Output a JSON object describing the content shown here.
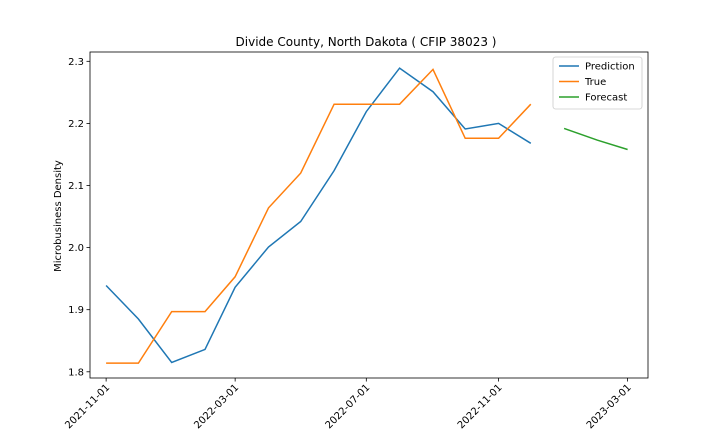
{
  "chart_data": {
    "type": "line",
    "title": "Divide County, North Dakota ( CFIP 38023 )",
    "xlabel": "",
    "ylabel": "Microbusiness Density",
    "ylim": [
      1.79,
      2.315
    ],
    "yticks": [
      1.8,
      1.9,
      2.0,
      2.1,
      2.2,
      2.3
    ],
    "ytick_labels": [
      "1.8",
      "1.9",
      "2.0",
      "2.1",
      "2.2",
      "2.3"
    ],
    "xlim": [
      "2021-10-17",
      "2023-03-20"
    ],
    "xticks": [
      "2021-11-01",
      "2022-03-01",
      "2022-07-01",
      "2022-11-01",
      "2023-03-01"
    ],
    "legend_position": "top-right",
    "grid": false,
    "series": [
      {
        "name": "Prediction",
        "color": "#1f77b4",
        "x": [
          "2021-11-01",
          "2021-12-01",
          "2022-01-01",
          "2022-02-01",
          "2022-03-01",
          "2022-04-01",
          "2022-05-01",
          "2022-06-01",
          "2022-07-01",
          "2022-08-01",
          "2022-09-01",
          "2022-10-01",
          "2022-11-01",
          "2022-12-01"
        ],
        "y": [
          1.939,
          1.885,
          1.815,
          1.836,
          1.936,
          2.001,
          2.042,
          2.124,
          2.219,
          2.289,
          2.251,
          2.191,
          2.2,
          2.168
        ]
      },
      {
        "name": "True",
        "color": "#ff7f0e",
        "x": [
          "2021-11-01",
          "2021-12-01",
          "2022-01-01",
          "2022-02-01",
          "2022-03-01",
          "2022-04-01",
          "2022-05-01",
          "2022-06-01",
          "2022-07-01",
          "2022-08-01",
          "2022-09-01",
          "2022-10-01",
          "2022-11-01",
          "2022-12-01"
        ],
        "y": [
          1.814,
          1.814,
          1.897,
          1.897,
          1.953,
          2.064,
          2.12,
          2.231,
          2.231,
          2.231,
          2.287,
          2.176,
          2.176,
          2.231
        ]
      },
      {
        "name": "Forecast",
        "color": "#2ca02c",
        "x": [
          "2023-01-01",
          "2023-02-01",
          "2023-03-01"
        ],
        "y": [
          2.192,
          2.173,
          2.158
        ]
      }
    ]
  }
}
